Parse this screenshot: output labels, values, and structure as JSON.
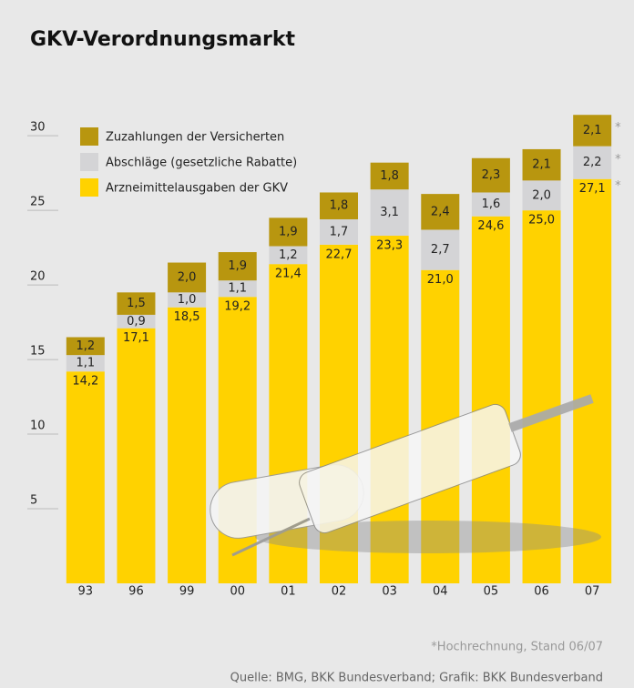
{
  "chart_data": {
    "type": "stacked_bar",
    "title": "GKV-Verordnungsmarkt",
    "categories": [
      "93",
      "96",
      "99",
      "00",
      "01",
      "02",
      "03",
      "04",
      "05",
      "06",
      "07"
    ],
    "series": [
      {
        "name": "Arzneimittelausgaben der GKV",
        "color": "#ffd200",
        "values": [
          14.2,
          17.1,
          18.5,
          19.2,
          21.4,
          22.7,
          23.3,
          21.0,
          24.6,
          25.0,
          27.1
        ],
        "value_labels": [
          "14,2",
          "17,1",
          "18,5",
          "19,2",
          "21,4",
          "22,7",
          "23,3",
          "21,0",
          "24,6",
          "25,0",
          "27,1"
        ]
      },
      {
        "name": "Abschläge (gesetzliche Rabatte)",
        "color": "#d4d4d6",
        "values": [
          1.1,
          0.9,
          1.0,
          1.1,
          1.2,
          1.7,
          3.1,
          2.7,
          1.6,
          2.0,
          2.2
        ],
        "value_labels": [
          "1,1",
          "0,9",
          "1,0",
          "1,1",
          "1,2",
          "1,7",
          "3,1",
          "2,7",
          "1,6",
          "2,0",
          "2,2"
        ]
      },
      {
        "name": "Zuzahlungen der Versicherten",
        "color": "#b8960f",
        "values": [
          1.2,
          1.5,
          2.0,
          1.9,
          1.9,
          1.8,
          1.8,
          2.4,
          2.3,
          2.1,
          2.1
        ],
        "value_labels": [
          "1,2",
          "1,5",
          "2,0",
          "1,9",
          "1,9",
          "1,8",
          "1,8",
          "2,4",
          "2,3",
          "2,1",
          "2,1"
        ]
      }
    ],
    "ylim": [
      0,
      33
    ],
    "yticks": [
      5,
      10,
      15,
      20,
      25,
      30
    ],
    "footnote": {
      "marker": "*",
      "applies_to": "07",
      "text": "*Hochrechnung, Stand 06/07"
    },
    "source": "Quelle: BMG, BKK Bundesverband; Grafik: BKK Bundesverband"
  }
}
